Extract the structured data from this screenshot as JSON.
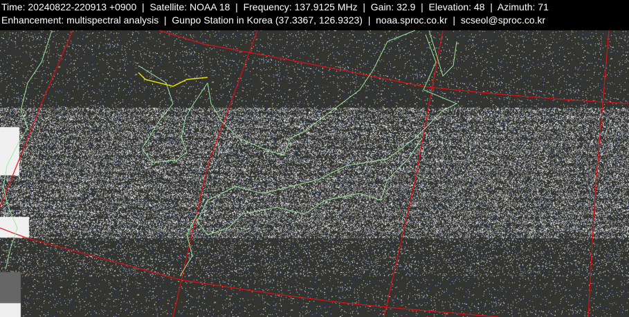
{
  "header": {
    "line1": "Time: 20240822-220913 +0900  |  Satellite: NOAA 18  |  Frequency: 137.9125 MHz  |  Gain: 32.9  |  Elevation: 48  |  Azimuth: 71",
    "line2": "Enhancement: multispectral analysis  |  Gunpo Station in Korea (37.3367, 126.9323)  |  noaa.sproc.co.kr  |  scseol@sproc.co.kr"
  },
  "colors": {
    "background": "#34342f",
    "grid_lines": "#e01010",
    "coastlines": "#9de89d",
    "border": "#e8e000",
    "noise_light": "#e6e6e6",
    "noise_blue": "#1e3c78"
  }
}
